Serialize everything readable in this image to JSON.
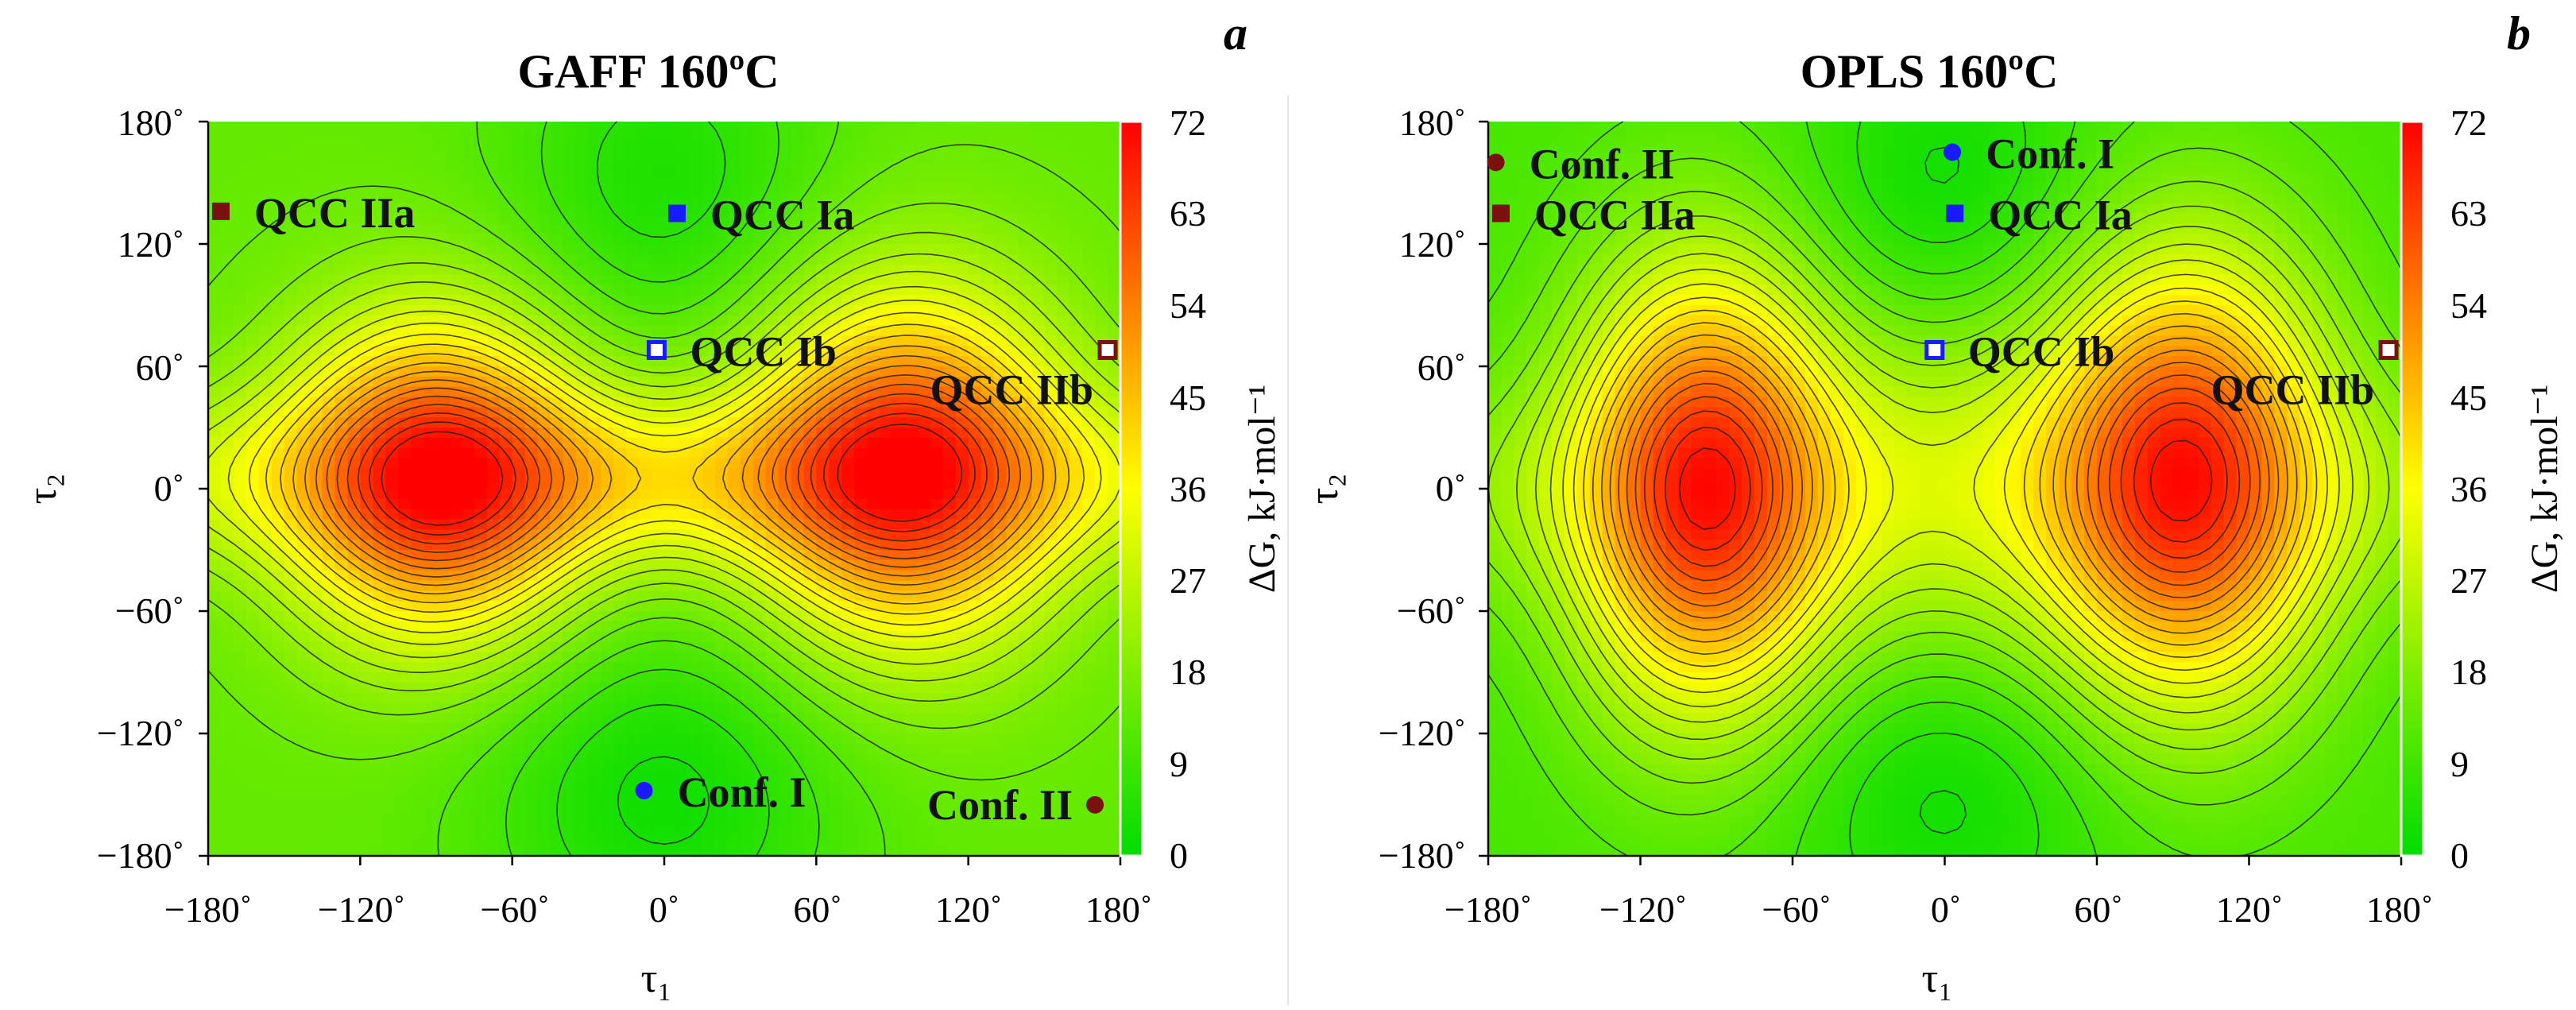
{
  "chart_data": [
    {
      "type": "heatmap",
      "panel_label": "a",
      "title": "GAFF 160ºC",
      "xlabel": "τ₁",
      "ylabel": "τ₂",
      "xlim": [
        -180,
        180
      ],
      "ylim": [
        -180,
        180
      ],
      "x_ticks": [
        "−180˚",
        "−120˚",
        "−60˚",
        "0˚",
        "60˚",
        "120˚",
        "180˚"
      ],
      "y_ticks": [
        "180˚",
        "120˚",
        "60˚",
        "0˚",
        "−60˚",
        "−120˚",
        "−180˚"
      ],
      "colorbar": {
        "label": "ΔG, kJ·mol⁻¹",
        "min": 0,
        "max": 72,
        "ticks": [
          "72",
          "63",
          "54",
          "45",
          "36",
          "27",
          "18",
          "9",
          "0"
        ],
        "colors": [
          "#00dd00",
          "#ffff00",
          "#ff0000"
        ]
      },
      "surface": {
        "base": 14,
        "terms": [
          {
            "x": -90,
            "y": 5,
            "sx": 40,
            "sy": 55,
            "a": 50
          },
          {
            "x": 95,
            "y": 10,
            "sx": 42,
            "sy": 60,
            "a": 50
          },
          {
            "x": -180,
            "y": 5,
            "sx": 60,
            "sy": 30,
            "a": 12
          },
          {
            "x": 180,
            "y": 5,
            "sx": 60,
            "sy": 30,
            "a": 12
          },
          {
            "x": 0,
            "y": 5,
            "sx": 70,
            "sy": 30,
            "a": 20
          },
          {
            "x": 0,
            "y": 150,
            "sx": 45,
            "sy": 60,
            "a": -10
          },
          {
            "x": 0,
            "y": -150,
            "sx": 50,
            "sy": 60,
            "a": -12
          }
        ]
      },
      "markers": [
        {
          "label": "QCC IIa",
          "x": -175,
          "y": 136,
          "shape": "square-filled",
          "color": "#7a1010",
          "label_side": "right"
        },
        {
          "label": "QCC Ia",
          "x": 5,
          "y": 135,
          "shape": "square-filled",
          "color": "#1a1aff",
          "label_side": "right"
        },
        {
          "label": "QCC Ib",
          "x": -3,
          "y": 68,
          "shape": "square-open",
          "color": "#1a1aff",
          "label_side": "right"
        },
        {
          "label": "QCC IIb",
          "x": 175,
          "y": 68,
          "shape": "square-open",
          "color": "#7a1010",
          "label_side": "below-left"
        },
        {
          "label": "Conf. I",
          "x": -8,
          "y": -148,
          "shape": "circle",
          "color": "#1a1aff",
          "label_side": "right"
        },
        {
          "label": "Conf. II",
          "x": 170,
          "y": -155,
          "shape": "circle",
          "color": "#7a1010",
          "label_side": "left"
        }
      ]
    },
    {
      "type": "heatmap",
      "panel_label": "b",
      "title": "OPLS 160ºC",
      "xlabel": "τ₁",
      "ylabel": "τ₂",
      "xlim": [
        -180,
        180
      ],
      "ylim": [
        -180,
        180
      ],
      "x_ticks": [
        "−180˚",
        "−120˚",
        "−60˚",
        "0˚",
        "60˚",
        "120˚",
        "180˚"
      ],
      "y_ticks": [
        "180˚",
        "120˚",
        "60˚",
        "0˚",
        "−60˚",
        "−120˚",
        "−180˚"
      ],
      "colorbar": {
        "label": "ΔG, kJ·mol⁻¹",
        "min": 0,
        "max": 72,
        "ticks": [
          "72",
          "63",
          "54",
          "45",
          "36",
          "27",
          "18",
          "9",
          "0"
        ],
        "colors": [
          "#00dd00",
          "#ffff00",
          "#ff0000"
        ]
      },
      "surface": {
        "base": 10,
        "terms": [
          {
            "x": -95,
            "y": 0,
            "sx": 35,
            "sy": 75,
            "a": 55
          },
          {
            "x": 95,
            "y": 5,
            "sx": 38,
            "sy": 75,
            "a": 55
          },
          {
            "x": 0,
            "y": 0,
            "sx": 55,
            "sy": 55,
            "a": 18
          },
          {
            "x": -180,
            "y": 0,
            "sx": 55,
            "sy": 40,
            "a": 8
          },
          {
            "x": 180,
            "y": 0,
            "sx": 55,
            "sy": 40,
            "a": 8
          },
          {
            "x": 0,
            "y": 150,
            "sx": 40,
            "sy": 50,
            "a": -8
          },
          {
            "x": 0,
            "y": -150,
            "sx": 45,
            "sy": 50,
            "a": -8
          }
        ]
      },
      "markers": [
        {
          "label": "Conf. II",
          "x": -177,
          "y": 160,
          "shape": "circle",
          "color": "#7a1010",
          "label_side": "right"
        },
        {
          "label": "QCC IIa",
          "x": -175,
          "y": 135,
          "shape": "square-filled",
          "color": "#7a1010",
          "label_side": "right"
        },
        {
          "label": "Conf. I",
          "x": 3,
          "y": 165,
          "shape": "circle",
          "color": "#1a1aff",
          "label_side": "right"
        },
        {
          "label": "QCC Ia",
          "x": 4,
          "y": 135,
          "shape": "square-filled",
          "color": "#1a1aff",
          "label_side": "right"
        },
        {
          "label": "QCC Ib",
          "x": -4,
          "y": 68,
          "shape": "square-open",
          "color": "#1a1aff",
          "label_side": "right"
        },
        {
          "label": "QCC IIb",
          "x": 175,
          "y": 68,
          "shape": "square-open",
          "color": "#7a1010",
          "label_side": "below-left"
        }
      ]
    }
  ]
}
